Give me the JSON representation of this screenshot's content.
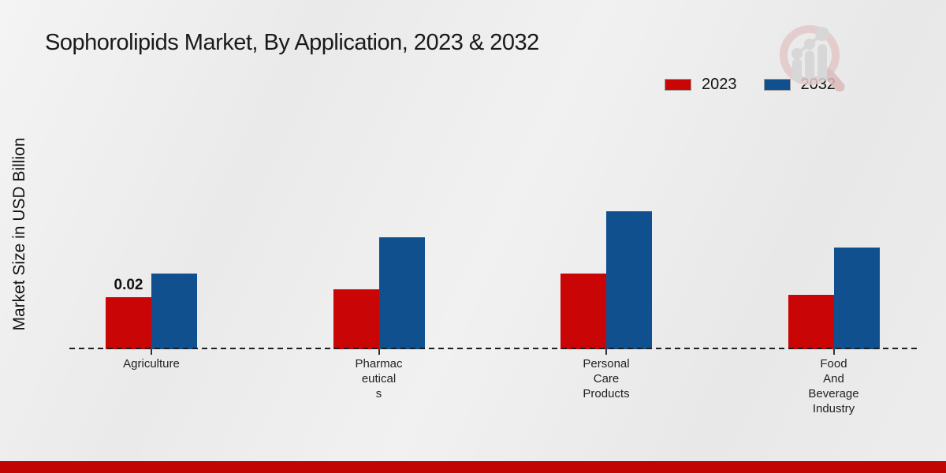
{
  "title": "Sophorolipids Market, By Application, 2023 & 2032",
  "y_axis_label": "Market Size in USD Billion",
  "colors": {
    "series_2023": "#c90505",
    "series_2032": "#11508f",
    "footer_band": "#c10505",
    "axis": "#1f1f1f",
    "background": "#ededed"
  },
  "legend": {
    "position": "top-right",
    "items": [
      {
        "label": "2023",
        "color": "#c90505"
      },
      {
        "label": "2032",
        "color": "#11508f"
      }
    ]
  },
  "chart_data": {
    "type": "bar",
    "title": "Sophorolipids Market, By Application, 2023 & 2032",
    "xlabel": "",
    "ylabel": "Market Size in USD Billion",
    "categories": [
      "Agriculture",
      "Pharmaceuticals",
      "Personal Care Products",
      "Food And Beverage Industry"
    ],
    "category_label_lines": [
      [
        "Agriculture"
      ],
      [
        "Pharmac",
        "eutical",
        "s"
      ],
      [
        "Personal",
        "Care",
        "Products"
      ],
      [
        "Food",
        "And",
        "Beverage",
        "Industry"
      ]
    ],
    "series": [
      {
        "name": "2023",
        "color": "#c90505",
        "values": [
          0.02,
          0.023,
          0.029,
          0.021
        ]
      },
      {
        "name": "2032",
        "color": "#11508f",
        "values": [
          0.029,
          0.043,
          0.053,
          0.039
        ]
      }
    ],
    "annotations": [
      {
        "category_index": 0,
        "series_index": 0,
        "text": "0.02"
      }
    ],
    "ylim": [
      0,
      0.06
    ],
    "grid": false,
    "baseline_style": "dashed",
    "legend_position": "top-right"
  },
  "watermark": {
    "name": "magnifier-bar-chart-logo"
  }
}
